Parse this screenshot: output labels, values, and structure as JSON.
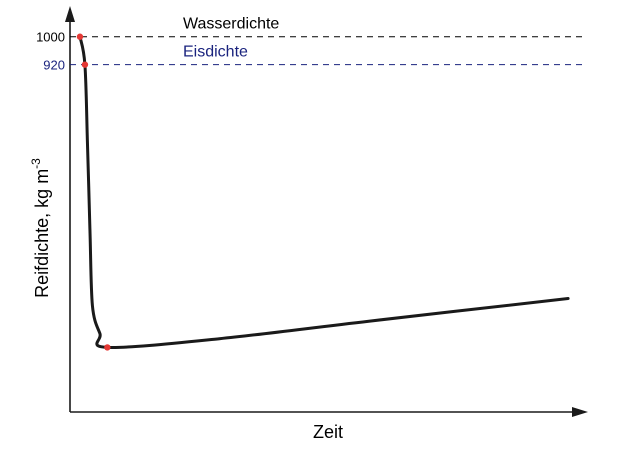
{
  "chart_data": {
    "type": "line",
    "xlabel": "Zeit",
    "ylabel": "Reifdichte, kg m",
    "ylabel_superscript": "-3",
    "y_ticks": [
      {
        "value": 1000,
        "label": "1000",
        "color": "#000000"
      },
      {
        "value": 920,
        "label": "920",
        "color": "#1a237e"
      }
    ],
    "reference_lines": [
      {
        "name": "Wasserdichte",
        "value": 1000,
        "color": "#000000",
        "style": "dashed"
      },
      {
        "name": "Eisdichte",
        "value": 920,
        "color": "#1a237e",
        "style": "dashed"
      }
    ],
    "series": [
      {
        "color": "#1a1a1a",
        "points": [
          {
            "x": 0.02,
            "y": 1000
          },
          {
            "x": 0.03,
            "y": 920
          },
          {
            "x": 0.035,
            "y": 700
          },
          {
            "x": 0.04,
            "y": 450
          },
          {
            "x": 0.045,
            "y": 230
          },
          {
            "x": 0.06,
            "y": 150
          },
          {
            "x": 0.075,
            "y": 110
          },
          {
            "x": 0.3,
            "y": 135
          },
          {
            "x": 0.6,
            "y": 185
          },
          {
            "x": 1.0,
            "y": 250
          }
        ]
      }
    ],
    "highlight_points": [
      {
        "x": 0.02,
        "y": 1000
      },
      {
        "x": 0.03,
        "y": 920
      },
      {
        "x": 0.075,
        "y": 110
      }
    ],
    "xlim": [
      0,
      1.04
    ],
    "ylim": [
      -75,
      1088
    ],
    "highlight_color": "#e53935",
    "grid": false,
    "legend": "none"
  }
}
